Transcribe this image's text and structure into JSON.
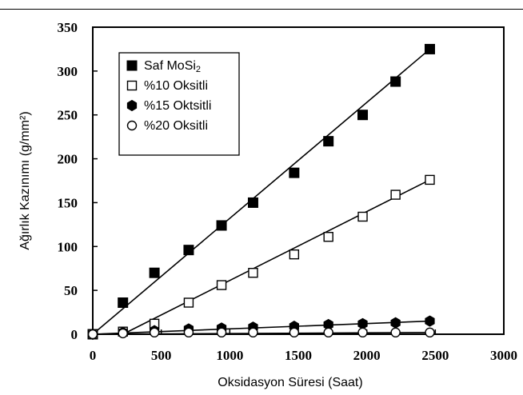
{
  "chart_data": {
    "type": "line",
    "title": "",
    "xlabel": "Oksidasyon Süresi (Saat)",
    "ylabel": "Ağırlık Kazınımı (g/mm²)",
    "xlim": [
      0,
      3000
    ],
    "ylim": [
      0,
      350
    ],
    "x_ticks": [
      "0",
      "500",
      "1000",
      "1500",
      "2000",
      "2500",
      "3000"
    ],
    "y_ticks": [
      "0",
      "50",
      "100",
      "150",
      "200",
      "250",
      "300",
      "350"
    ],
    "x_tick_values": [
      0,
      500,
      1000,
      1500,
      2000,
      2500,
      3000
    ],
    "y_tick_values": [
      0,
      50,
      100,
      150,
      200,
      250,
      300,
      350
    ],
    "grid": false,
    "legend_position": "top-left",
    "series": [
      {
        "name": "Saf MoSi",
        "name_sub": "2",
        "marker": "filled-square",
        "color": "#000000",
        "x": [
          0,
          220,
          450,
          700,
          940,
          1170,
          1470,
          1720,
          1970,
          2210,
          2460
        ],
        "y": [
          0,
          36,
          70,
          96,
          124,
          150,
          184,
          220,
          250,
          288,
          325
        ],
        "fit": [
          [
            0,
            0
          ],
          [
            2460,
            325
          ]
        ]
      },
      {
        "name": "%10 Oksitli",
        "marker": "open-square",
        "color": "#000000",
        "x": [
          0,
          220,
          450,
          700,
          940,
          1170,
          1470,
          1720,
          1970,
          2210,
          2460
        ],
        "y": [
          0,
          3,
          12,
          36,
          56,
          70,
          91,
          111,
          134,
          159,
          176
        ],
        "fit": [
          [
            220,
            0
          ],
          [
            2460,
            176
          ]
        ]
      },
      {
        "name": "%15 Oktsitli",
        "marker": "filled-hexagon",
        "color": "#000000",
        "x": [
          0,
          220,
          450,
          700,
          940,
          1170,
          1470,
          1720,
          1970,
          2210,
          2460
        ],
        "y": [
          0,
          2,
          4,
          6,
          7,
          8,
          9,
          11,
          12,
          13,
          15
        ],
        "fit": [
          [
            0,
            0
          ],
          [
            2460,
            15
          ]
        ]
      },
      {
        "name": "%20 Oksitli",
        "marker": "open-circle",
        "color": "#000000",
        "x": [
          0,
          220,
          450,
          700,
          940,
          1170,
          1470,
          1720,
          1970,
          2210,
          2460
        ],
        "y": [
          0,
          1,
          2,
          2,
          2,
          2,
          2,
          2,
          2,
          2,
          2
        ],
        "fit": [
          [
            0,
            0
          ],
          [
            2460,
            2
          ]
        ]
      }
    ]
  }
}
